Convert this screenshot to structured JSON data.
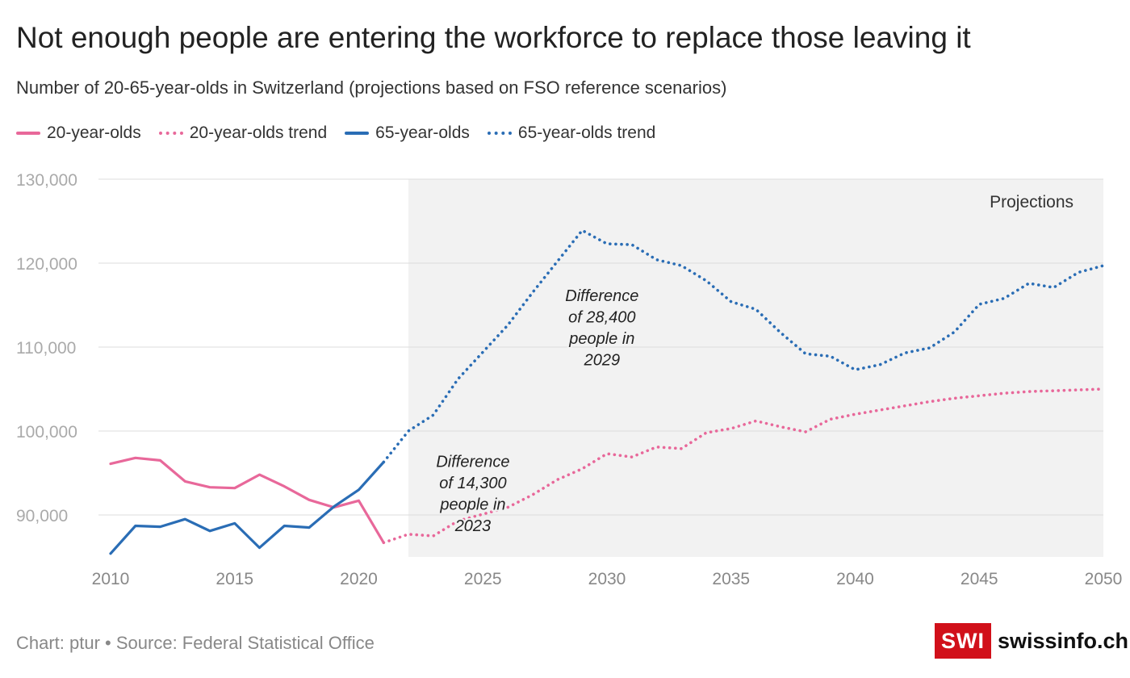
{
  "title": "Not enough people are entering the workforce to replace those leaving it",
  "subtitle": "Number of 20-65-year-olds in Switzerland (projections based on FSO reference scenarios)",
  "legend": [
    {
      "label": "20-year-olds",
      "color": "#e8689a",
      "style": "solid"
    },
    {
      "label": "20-year-olds trend",
      "color": "#e8689a",
      "style": "dotted"
    },
    {
      "label": "65-year-olds",
      "color": "#2a6db5",
      "style": "solid"
    },
    {
      "label": "65-year-olds trend",
      "color": "#2a6db5",
      "style": "dotted"
    }
  ],
  "footer": "Chart: ptur • Source: Federal Statistical Office",
  "logo": {
    "box": "SWI",
    "text": "swissinfo.ch"
  },
  "chart_data": {
    "type": "line",
    "xlim": [
      2010,
      2050
    ],
    "ylim": [
      85000,
      130000
    ],
    "x_ticks": [
      2010,
      2015,
      2020,
      2025,
      2030,
      2035,
      2040,
      2045,
      2050
    ],
    "y_ticks": [
      90000,
      100000,
      110000,
      120000,
      130000
    ],
    "y_tick_labels": [
      "90,000",
      "100,000",
      "110,000",
      "120,000",
      "130,000"
    ],
    "projection_region": {
      "from": 2022,
      "to": 2050,
      "label": "Projections"
    },
    "series": [
      {
        "name": "20-year-olds",
        "color": "#e8689a",
        "style": "solid",
        "x": [
          2010,
          2011,
          2012,
          2013,
          2014,
          2015,
          2016,
          2017,
          2018,
          2019,
          2020,
          2021
        ],
        "values": [
          96100,
          96800,
          96500,
          94000,
          93300,
          93200,
          94800,
          93400,
          91800,
          90900,
          91700,
          86700
        ]
      },
      {
        "name": "20-year-olds trend",
        "color": "#e8689a",
        "style": "dotted",
        "x": [
          2021,
          2022,
          2023,
          2024,
          2025,
          2026,
          2027,
          2028,
          2029,
          2030,
          2031,
          2032,
          2033,
          2034,
          2035,
          2036,
          2037,
          2038,
          2039,
          2040,
          2041,
          2042,
          2043,
          2044,
          2045,
          2046,
          2047,
          2048,
          2049,
          2050
        ],
        "values": [
          86700,
          87700,
          87500,
          89300,
          90100,
          90900,
          92400,
          94200,
          95500,
          97300,
          96900,
          98100,
          97900,
          99800,
          100300,
          101200,
          100500,
          99900,
          101400,
          102000,
          102500,
          103000,
          103500,
          103900,
          104200,
          104500,
          104700,
          104800,
          104900,
          105000
        ]
      },
      {
        "name": "65-year-olds",
        "color": "#2a6db5",
        "style": "solid",
        "x": [
          2010,
          2011,
          2012,
          2013,
          2014,
          2015,
          2016,
          2017,
          2018,
          2019,
          2020,
          2021
        ],
        "values": [
          85400,
          88700,
          88600,
          89500,
          88100,
          89000,
          86100,
          88700,
          88500,
          91000,
          93000,
          96300
        ]
      },
      {
        "name": "65-year-olds trend",
        "color": "#2a6db5",
        "style": "dotted",
        "x": [
          2021,
          2022,
          2023,
          2024,
          2025,
          2026,
          2027,
          2028,
          2029,
          2030,
          2031,
          2032,
          2033,
          2034,
          2035,
          2036,
          2037,
          2038,
          2039,
          2040,
          2041,
          2042,
          2043,
          2044,
          2045,
          2046,
          2047,
          2048,
          2049,
          2050
        ],
        "values": [
          96300,
          100000,
          101900,
          106200,
          109400,
          112600,
          116500,
          120200,
          123900,
          122300,
          122200,
          120400,
          119700,
          117900,
          115400,
          114500,
          111700,
          109200,
          108900,
          107300,
          107900,
          109300,
          109900,
          111800,
          115100,
          115800,
          117600,
          117100,
          118900,
          119700
        ]
      }
    ],
    "annotations": [
      {
        "lines": [
          "Difference",
          "of 14,300",
          "people in",
          "2023"
        ],
        "x": 2024.6,
        "y": 95700
      },
      {
        "lines": [
          "Difference",
          "of 28,400",
          "people in",
          "2029"
        ],
        "x": 2029.8,
        "y": 115500
      }
    ]
  }
}
